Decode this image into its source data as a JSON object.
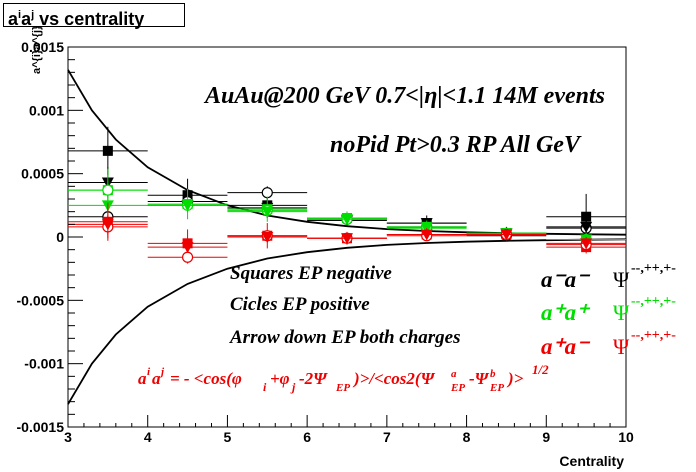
{
  "chart_data": {
    "type": "scatter",
    "title": "a^{i}a^{j} vs centrality",
    "xlabel": "Centrality",
    "ylabel": "a^{i}a^{j}",
    "xlim": [
      3,
      10
    ],
    "ylim": [
      -0.0015,
      0.0015
    ],
    "x_ticks": [
      "3",
      "4",
      "5",
      "6",
      "7",
      "8",
      "9",
      "10"
    ],
    "y_ticks": [
      "-0.0015",
      "-0.001",
      "-0.0005",
      "0",
      "0.0005",
      "0.001",
      "0.0015"
    ],
    "annotations": {
      "line1": "AuAu@200 GeV 0.7<|η|<1.1 14M events",
      "line2": "noPid Pt>0.3 RP All GeV",
      "legend_squares": "Squares EP negative",
      "legend_circles": "Cicles EP positive",
      "legend_arrows": "Arrow down EP both charges",
      "formula_lhs": "a",
      "formula_body": "= - <cos(φ",
      "formula_rest": "-2Ψ",
      "formula_tail": ")>/<cos2(Ψ",
      "formula_end": ")>",
      "formula_power": "1/2"
    },
    "legend_entries": [
      {
        "pair": "a⁻a⁻",
        "psi": "Ψ",
        "sup": "--,++,+-",
        "color": "#000000"
      },
      {
        "pair": "a⁺a⁺",
        "psi": "Ψ",
        "sup": "--,++,+-",
        "color": "#00dd00"
      },
      {
        "pair": "a⁺a⁻",
        "psi": "Ψ",
        "sup": "--,++,+-",
        "color": "#ee0000"
      }
    ],
    "series": [
      {
        "name": "a-a- squares",
        "color": "#000000",
        "marker": "square",
        "x": [
          3.5,
          4.5,
          5.5,
          6.5,
          7.5,
          8.5,
          9.5
        ],
        "y": [
          0.00068,
          0.00033,
          0.00025,
          0.00015,
          0.00011,
          3e-05,
          0.00016
        ],
        "yerr": [
          0.00019,
          0.00013,
          0.0001,
          5e-05,
          6e-05,
          5e-05,
          0.00018
        ]
      },
      {
        "name": "a-a- circles",
        "color": "#000000",
        "marker": "circle",
        "x": [
          3.5,
          4.5,
          5.5,
          6.5,
          7.5,
          8.5,
          9.5
        ],
        "y": [
          0.00016,
          0.00028,
          0.00035,
          0.00014,
          8e-05,
          1e-05,
          7e-05
        ],
        "yerr": [
          8e-05,
          5e-05,
          5e-05,
          4e-05,
          4e-05,
          4e-05,
          7e-05
        ]
      },
      {
        "name": "a-a- arrows",
        "color": "#000000",
        "marker": "triangle-down",
        "x": [
          3.5,
          4.5,
          5.5,
          6.5,
          7.5,
          8.5,
          9.5
        ],
        "y": [
          0.00043,
          0.00025,
          0.00023,
          0.00013,
          0.00011,
          3e-05,
          8e-05
        ],
        "yerr": [
          0.00012,
          4e-05,
          3e-05,
          3e-05,
          3e-05,
          4e-05,
          6e-05
        ]
      },
      {
        "name": "a+a+ squares",
        "color": "#00dd00",
        "marker": "square",
        "x": [
          3.5,
          4.5,
          5.5,
          6.5,
          7.5,
          8.5,
          9.5
        ],
        "y": [
          0.00037,
          0.00026,
          0.00022,
          0.00015,
          8e-05,
          3e-05,
          -2e-05
        ],
        "yerr": [
          0.00017,
          0.00012,
          0.0001,
          5e-05,
          5e-05,
          4e-05,
          5e-05
        ]
      },
      {
        "name": "a+a+ circles",
        "color": "#00dd00",
        "marker": "circle",
        "x": [
          3.5,
          4.5,
          5.5,
          6.5,
          7.5,
          8.5,
          9.5
        ],
        "y": [
          0.00037,
          0.00025,
          0.00021,
          0.00014,
          7e-05,
          3e-05,
          -2e-05
        ],
        "yerr": [
          8e-05,
          4e-05,
          4e-05,
          3e-05,
          3e-05,
          3e-05,
          5e-05
        ]
      },
      {
        "name": "a+a+ arrows",
        "color": "#00dd00",
        "marker": "triangle-down",
        "x": [
          3.5,
          4.5,
          5.5,
          6.5,
          7.5,
          8.5,
          9.5
        ],
        "y": [
          0.00025,
          0.00025,
          0.0002,
          0.00014,
          7e-05,
          3e-05,
          -2e-05
        ],
        "yerr": [
          7e-05,
          4e-05,
          3e-05,
          3e-05,
          3e-05,
          3e-05,
          5e-05
        ]
      },
      {
        "name": "a+a- squares",
        "color": "#ee0000",
        "marker": "square",
        "x": [
          3.5,
          4.5,
          5.5,
          6.5,
          7.5,
          8.5,
          9.5
        ],
        "y": [
          0.00012,
          -5e-05,
          1e-05,
          -1e-05,
          2e-05,
          2e-05,
          -8e-05
        ],
        "yerr": [
          0.00015,
          0.00011,
          0.0001,
          5e-05,
          5e-05,
          4e-05,
          5e-05
        ]
      },
      {
        "name": "a+a- circles",
        "color": "#ee0000",
        "marker": "circle",
        "x": [
          3.5,
          4.5,
          5.5,
          6.5,
          7.5,
          8.5,
          9.5
        ],
        "y": [
          8e-05,
          -0.00016,
          1e-05,
          -1e-05,
          1e-05,
          2e-05,
          -6e-05
        ],
        "yerr": [
          9e-05,
          5e-05,
          4e-05,
          3e-05,
          3e-05,
          3e-05,
          5e-05
        ]
      },
      {
        "name": "a+a- arrows",
        "color": "#ee0000",
        "marker": "triangle-down",
        "x": [
          3.5,
          4.5,
          5.5,
          6.5,
          7.5,
          8.5,
          9.5
        ],
        "y": [
          0.0001,
          -8e-05,
          0.0,
          -1e-05,
          2e-05,
          2e-05,
          -5e-05
        ],
        "yerr": [
          8e-05,
          4e-05,
          3e-05,
          3e-05,
          3e-05,
          3e-05,
          5e-05
        ]
      }
    ],
    "bands": {
      "x": [
        3.0,
        3.3,
        3.6,
        4.0,
        4.5,
        5.0,
        5.5,
        6.0,
        6.5,
        7.0,
        7.5,
        8.0,
        8.5,
        9.0,
        9.5,
        10.0
      ],
      "upper": [
        0.00132,
        0.001,
        0.00077,
        0.00055,
        0.00037,
        0.00025,
        0.00017,
        0.00012,
        8.5e-05,
        6.2e-05,
        4.7e-05,
        3.7e-05,
        3e-05,
        2.5e-05,
        2.1e-05,
        1.8e-05
      ]
    }
  }
}
